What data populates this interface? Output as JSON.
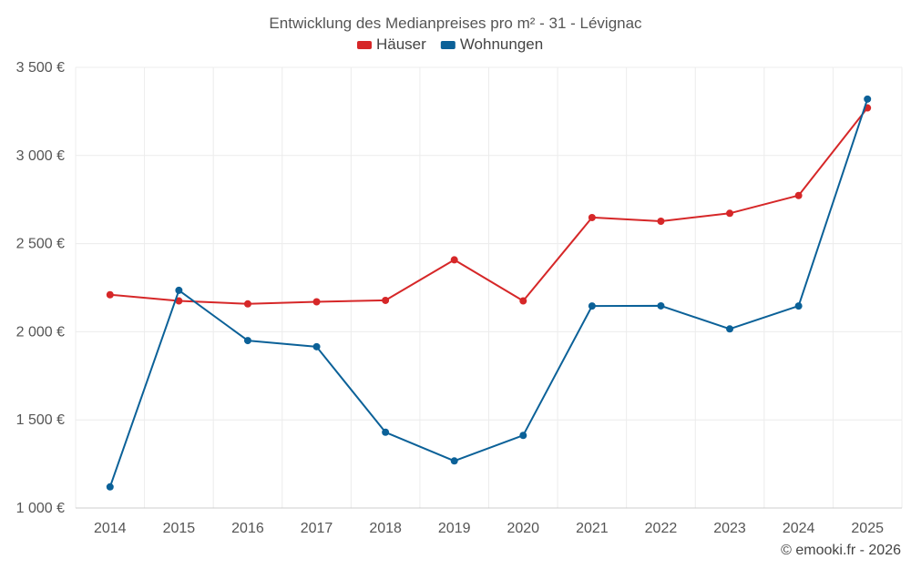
{
  "chart_data": {
    "type": "line",
    "title": "Entwicklung des Medianpreises pro m² - 31 - Lévignac",
    "categories": [
      "2014",
      "2015",
      "2016",
      "2017",
      "2018",
      "2019",
      "2020",
      "2021",
      "2022",
      "2023",
      "2024",
      "2025"
    ],
    "series": [
      {
        "name": "Häuser",
        "color": "#d62728",
        "values": [
          2210,
          2175,
          2158,
          2170,
          2178,
          2408,
          2175,
          2648,
          2627,
          2672,
          2773,
          3270
        ]
      },
      {
        "name": "Wohnungen",
        "color": "#0b6198",
        "values": [
          1120,
          2235,
          1950,
          1915,
          1430,
          1267,
          1412,
          2146,
          2147,
          2016,
          2146,
          3320
        ]
      }
    ],
    "ylim": [
      1000,
      3500
    ],
    "yticks": [
      1000,
      1500,
      2000,
      2500,
      3000,
      3500
    ],
    "ytick_labels": [
      "1 000 €",
      "1 500 €",
      "2 000 €",
      "2 500 €",
      "3 000 €",
      "3 500 €"
    ],
    "legend_position": "top-center",
    "grid": true,
    "credit": "© emooki.fr - 2026"
  }
}
